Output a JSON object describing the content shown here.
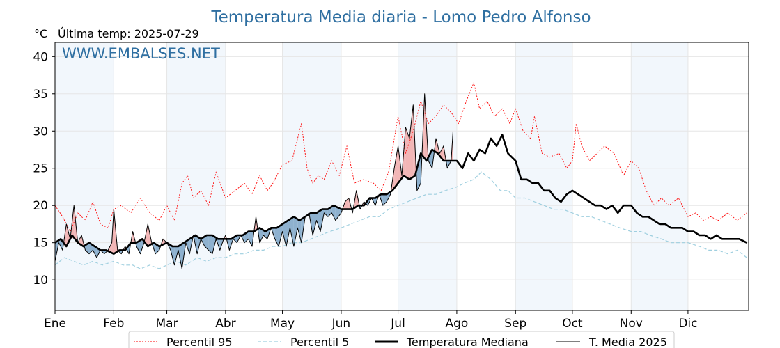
{
  "chart_data": {
    "type": "line",
    "title": "Temperatura Media diaria - Lomo Pedro Alfonso",
    "unit_label": "°C",
    "last_temp_label": "Última temp: 2025-07-29",
    "watermark": "WWW.EMBALSES.NET",
    "ylim": [
      5.9,
      41.9
    ],
    "yticks": [
      10,
      15,
      20,
      25,
      30,
      35,
      40
    ],
    "xlim": [
      0,
      366
    ],
    "month_labels": [
      "Ene",
      "Feb",
      "Mar",
      "Abr",
      "May",
      "Jun",
      "Jul",
      "Ago",
      "Sep",
      "Oct",
      "Nov",
      "Dic"
    ],
    "month_starts": [
      0,
      31,
      59,
      90,
      120,
      151,
      181,
      212,
      243,
      273,
      304,
      334
    ],
    "grid": true,
    "legend_position": "bottom-center",
    "colors": {
      "title": "#2f6fa1",
      "watermark": "#2f6fa1",
      "p95": "#ff0000",
      "p5": "#9fcfdf",
      "median": "#000000",
      "current": "#000000",
      "above_fill": "#f2b6b6",
      "below_fill": "#8eb1cf",
      "band": "#f2f7fc"
    },
    "series": [
      {
        "name": "Percentil 95",
        "style": "dotted",
        "x": [
          0,
          4,
          8,
          12,
          16,
          20,
          24,
          28,
          31,
          35,
          40,
          45,
          50,
          55,
          59,
          63,
          67,
          70,
          73,
          77,
          81,
          85,
          90,
          95,
          100,
          104,
          108,
          112,
          115,
          120,
          125,
          130,
          133,
          136,
          139,
          142,
          146,
          150,
          154,
          158,
          163,
          168,
          172,
          176,
          181,
          185,
          189,
          193,
          197,
          201,
          205,
          209,
          213,
          217,
          221,
          224,
          228,
          232,
          236,
          240,
          243,
          247,
          251,
          253,
          257,
          261,
          266,
          270,
          273,
          275,
          278,
          282,
          286,
          290,
          295,
          300,
          304,
          308,
          312,
          316,
          320,
          324,
          329,
          334,
          338,
          342,
          346,
          350,
          355,
          360,
          365
        ],
        "y": [
          20,
          18.5,
          16.5,
          19,
          18,
          20.5,
          17.5,
          17,
          19.5,
          20,
          19,
          21,
          19,
          18,
          20,
          18,
          23,
          24,
          21,
          22,
          20,
          24.5,
          21,
          22,
          23,
          21.5,
          24,
          22,
          23,
          25.5,
          26,
          31,
          25,
          23,
          24,
          23.5,
          26,
          24,
          28,
          23,
          23.5,
          23,
          22,
          24.5,
          32,
          27,
          30,
          34,
          31,
          32,
          33.5,
          32.5,
          31,
          34,
          36.5,
          33,
          34,
          32,
          33,
          31,
          33,
          30,
          29,
          32,
          27,
          26.5,
          27,
          25,
          26,
          31,
          28,
          26,
          27,
          28,
          27,
          24,
          26,
          25,
          22,
          20,
          21,
          20,
          21,
          18.5,
          19,
          18,
          18.5,
          18,
          19,
          18,
          19
        ]
      },
      {
        "name": "Percentil 5",
        "style": "dashed",
        "x": [
          0,
          5,
          10,
          15,
          20,
          25,
          31,
          36,
          41,
          45,
          50,
          55,
          59,
          64,
          69,
          75,
          80,
          85,
          90,
          95,
          100,
          105,
          110,
          115,
          120,
          125,
          130,
          135,
          140,
          145,
          151,
          156,
          161,
          166,
          171,
          176,
          181,
          186,
          191,
          196,
          201,
          206,
          212,
          216,
          221,
          225,
          230,
          235,
          239,
          243,
          248,
          253,
          258,
          263,
          268,
          273,
          278,
          283,
          288,
          293,
          298,
          304,
          309,
          314,
          320,
          325,
          330,
          334,
          340,
          345,
          350,
          355,
          360,
          365
        ],
        "y": [
          12,
          13,
          12.5,
          12,
          12.5,
          12,
          12.5,
          12,
          12,
          11.5,
          12,
          11.5,
          12,
          12.5,
          12,
          13,
          12.5,
          13,
          13,
          13.5,
          13.5,
          14,
          14,
          14.5,
          14.5,
          15,
          15,
          15.5,
          16,
          16.5,
          17,
          17.5,
          18,
          18.5,
          18.5,
          19.5,
          20,
          20.5,
          21,
          21.5,
          21.5,
          22,
          22.5,
          23,
          23.5,
          24.5,
          23.5,
          22,
          22,
          21,
          21,
          20.5,
          20,
          19.5,
          19.5,
          19,
          18.5,
          18.5,
          18,
          17.5,
          17,
          16.5,
          16.5,
          16,
          15.5,
          15,
          15,
          15,
          14.5,
          14,
          14,
          13.5,
          14,
          13
        ]
      },
      {
        "name": "Temperatura Mediana",
        "style": "solid-thick",
        "x": [
          0,
          3,
          6,
          9,
          12,
          15,
          18,
          21,
          24,
          27,
          31,
          34,
          37,
          40,
          43,
          46,
          49,
          52,
          55,
          59,
          62,
          65,
          68,
          71,
          74,
          77,
          80,
          83,
          86,
          90,
          93,
          96,
          99,
          102,
          105,
          108,
          111,
          114,
          117,
          120,
          123,
          126,
          129,
          132,
          135,
          138,
          141,
          144,
          147,
          151,
          154,
          157,
          160,
          163,
          166,
          169,
          172,
          175,
          178,
          181,
          184,
          187,
          190,
          193,
          196,
          199,
          202,
          205,
          208,
          212,
          215,
          218,
          221,
          224,
          227,
          230,
          233,
          236,
          239,
          243,
          246,
          249,
          252,
          255,
          258,
          261,
          264,
          267,
          270,
          273,
          276,
          279,
          282,
          285,
          288,
          291,
          294,
          297,
          300,
          304,
          307,
          310,
          313,
          316,
          319,
          322,
          325,
          328,
          331,
          334,
          337,
          340,
          343,
          346,
          349,
          352,
          355,
          358,
          361,
          365
        ],
        "y": [
          15,
          15.5,
          14.5,
          16,
          15,
          14.5,
          15,
          14.5,
          14,
          14,
          13.5,
          14,
          14,
          15,
          15,
          15.5,
          14.5,
          15,
          14.5,
          15,
          14.5,
          14.5,
          15,
          15.5,
          16,
          15.5,
          16,
          16,
          15.5,
          15.5,
          15.5,
          16,
          16,
          16.5,
          16.5,
          17,
          16.5,
          17,
          17,
          17.5,
          18,
          18.5,
          18,
          18.5,
          19,
          19,
          19.5,
          19.5,
          20,
          19.5,
          19.5,
          19.5,
          20,
          20,
          21,
          21,
          21.5,
          21.5,
          22,
          23,
          24,
          23.5,
          24,
          27,
          26,
          27.5,
          27,
          26,
          26,
          26,
          25,
          27,
          26,
          27.5,
          27,
          29,
          28,
          29.5,
          27,
          26,
          23.5,
          23.5,
          23,
          23,
          22,
          22,
          21,
          20.5,
          21.5,
          22,
          21.5,
          21,
          20.5,
          20,
          20,
          19.5,
          20,
          19,
          20,
          20,
          19,
          18.5,
          18.5,
          18,
          17.5,
          17.5,
          17,
          17,
          17,
          16.5,
          16.5,
          16,
          16,
          15.5,
          16,
          15.5,
          15.5,
          15.5,
          15.5,
          15
        ]
      },
      {
        "name": "T. Media 2025",
        "style": "solid-thin",
        "x": [
          0,
          2,
          4,
          6,
          8,
          10,
          12,
          14,
          16,
          18,
          20,
          22,
          24,
          26,
          28,
          30,
          31,
          33,
          35,
          37,
          39,
          41,
          43,
          45,
          47,
          49,
          51,
          53,
          55,
          57,
          59,
          61,
          63,
          65,
          67,
          69,
          71,
          73,
          75,
          77,
          79,
          81,
          83,
          85,
          87,
          89,
          90,
          92,
          94,
          96,
          98,
          100,
          102,
          104,
          106,
          108,
          110,
          112,
          114,
          116,
          118,
          120,
          122,
          124,
          126,
          128,
          130,
          132,
          134,
          136,
          138,
          140,
          142,
          144,
          146,
          148,
          151,
          153,
          155,
          157,
          159,
          161,
          163,
          165,
          167,
          169,
          171,
          173,
          175,
          177,
          179,
          181,
          183,
          185,
          187,
          189,
          191,
          193,
          195,
          197,
          199,
          201,
          203,
          205,
          207,
          209,
          210
        ],
        "y": [
          12.5,
          15,
          14,
          17.5,
          15.5,
          20,
          15,
          16,
          14,
          13.5,
          14,
          13,
          14,
          13.5,
          14,
          15,
          19.5,
          14,
          13.5,
          14.5,
          13.5,
          16.5,
          14.5,
          13.5,
          15,
          17.5,
          15,
          13.5,
          14,
          15.5,
          15,
          14,
          12,
          14,
          11.5,
          15,
          13.5,
          16,
          13.5,
          15.5,
          14.5,
          14,
          13.5,
          15.5,
          14,
          15.5,
          16,
          14,
          15.5,
          15,
          16,
          15,
          15.5,
          14.5,
          18.5,
          15,
          16,
          15.5,
          17,
          15.5,
          14.5,
          16.5,
          14.5,
          17,
          14.5,
          17,
          15,
          18.5,
          19,
          16,
          18,
          16.5,
          19,
          18.5,
          19,
          18,
          19,
          20.5,
          21,
          19,
          22,
          19.5,
          20.5,
          20,
          21,
          20,
          21.5,
          20,
          20.5,
          21.5,
          25,
          28,
          24,
          30.5,
          29,
          33.5,
          22,
          23,
          35,
          26,
          25,
          29,
          27,
          28,
          25,
          26,
          30
        ]
      }
    ]
  }
}
